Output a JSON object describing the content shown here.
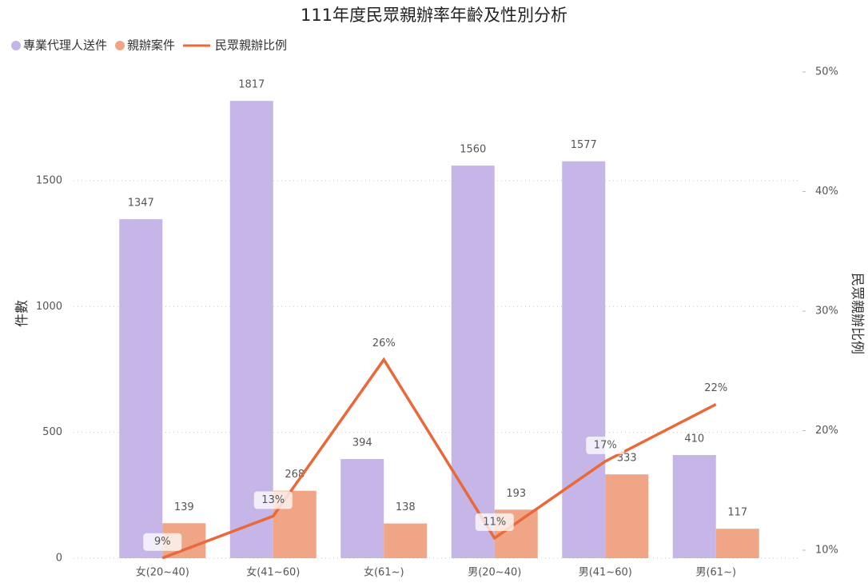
{
  "chart_data": {
    "type": "bar_line",
    "title": "111年度民眾親辦率年齡及性別分析",
    "categories": [
      "女(20~40)",
      "女(41~60)",
      "女(61~)",
      "男(20~40)",
      "男(41~60)",
      "男(61~)"
    ],
    "series": [
      {
        "name": "專業代理人送件",
        "color": "#c5b6e7",
        "type": "bar",
        "values": [
          1347,
          1817,
          394,
          1560,
          1577,
          410
        ]
      },
      {
        "name": "親辦案件",
        "color": "#f0a586",
        "type": "bar",
        "values": [
          139,
          268,
          138,
          193,
          333,
          117
        ]
      },
      {
        "name": "民眾親辦比例",
        "color": "#e8693a",
        "type": "line",
        "axis": "y2",
        "values": [
          9.35,
          12.85,
          25.94,
          11.01,
          17.43,
          22.2
        ],
        "value_labels": [
          "9%",
          "13%",
          "26%",
          "11%",
          "17%",
          "22%"
        ]
      }
    ],
    "ylabel": "件數",
    "y2label": "民眾親辦比例",
    "ylim": [
      0,
      1932
    ],
    "yticks": [
      0,
      500,
      1000,
      1500
    ],
    "y2lim": [
      9.33,
      50
    ],
    "y2ticks": [
      {
        "value": 10,
        "label": "10%"
      },
      {
        "value": 20,
        "label": "20%"
      },
      {
        "value": 30,
        "label": "30%"
      },
      {
        "value": 40,
        "label": "40%"
      },
      {
        "value": 50,
        "label": "50%"
      }
    ],
    "grid": true,
    "legend": "top-left"
  }
}
